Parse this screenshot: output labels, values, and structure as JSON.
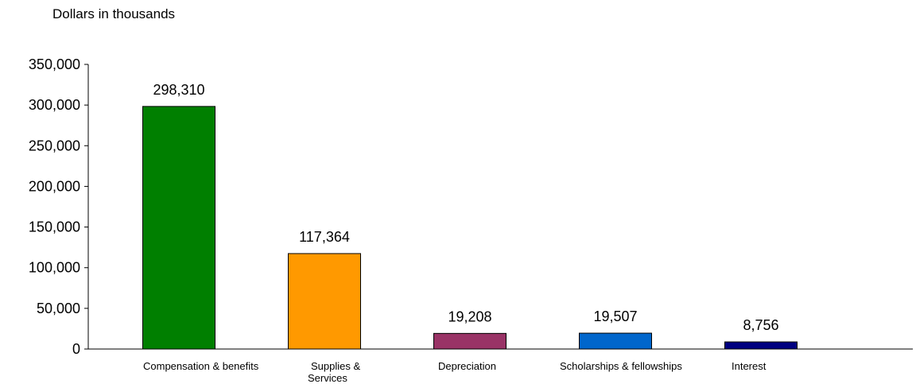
{
  "chart_data": {
    "type": "bar",
    "units_label": "Dollars in thousands",
    "categories": [
      [
        "Compensation & benefits"
      ],
      [
        "Supplies &",
        "Services"
      ],
      [
        "Depreciation"
      ],
      [
        "Scholarships & fellowships"
      ],
      [
        "Interest"
      ]
    ],
    "values": [
      298310,
      117364,
      19208,
      19507,
      8756
    ],
    "data_labels": [
      "298,310",
      "117,364",
      "19,208",
      "19,507",
      "8,756"
    ],
    "colors": [
      "#007f00",
      "#ff9900",
      "#993366",
      "#0066cc",
      "#000080"
    ],
    "ylim": [
      0,
      350000
    ],
    "yticks": [
      0,
      50000,
      100000,
      150000,
      200000,
      250000,
      300000,
      350000
    ],
    "ytick_labels": [
      "0",
      "50,000",
      "100,000",
      "150,000",
      "200,000",
      "250,000",
      "300,000",
      "350,000"
    ],
    "grid": false,
    "legend": "none"
  }
}
